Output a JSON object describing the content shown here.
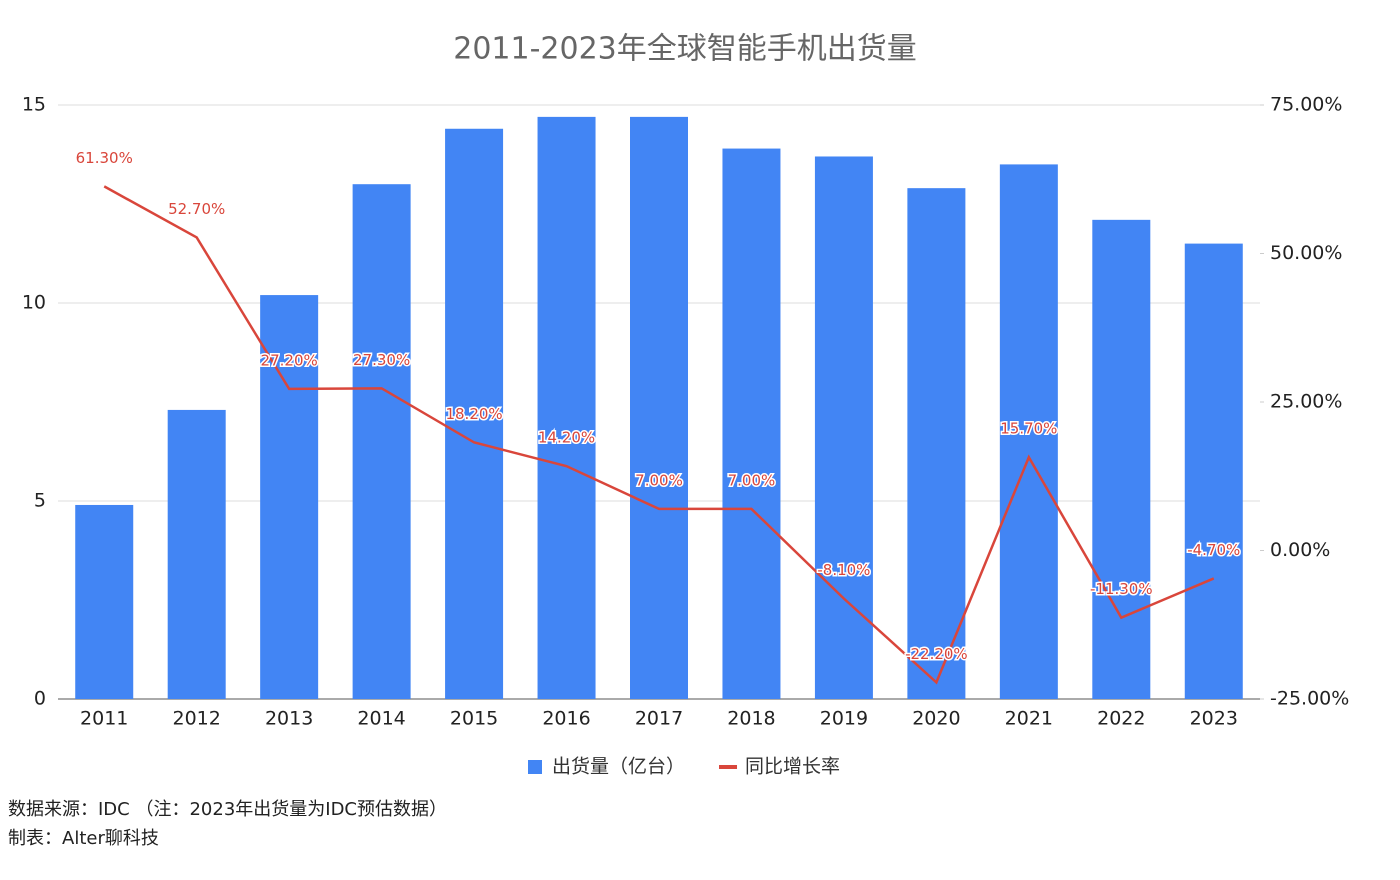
{
  "chart_data": {
    "type": "bar-line",
    "title": "2011-2023年全球智能手机出货量",
    "categories": [
      "2011",
      "2012",
      "2013",
      "2014",
      "2015",
      "2016",
      "2017",
      "2018",
      "2019",
      "2020",
      "2021",
      "2022",
      "2023"
    ],
    "series": [
      {
        "name": "出货量（亿台）",
        "type": "bar",
        "color": "#4285f4",
        "values": [
          4.9,
          7.3,
          10.2,
          13.0,
          14.4,
          14.7,
          14.7,
          13.9,
          13.7,
          12.9,
          13.5,
          12.1,
          11.5
        ]
      },
      {
        "name": "同比增长率",
        "type": "line",
        "axis": "y2",
        "color": "#d9463b",
        "values": [
          61.3,
          52.7,
          27.2,
          27.3,
          18.2,
          14.2,
          7.0,
          7.0,
          -8.1,
          -22.2,
          15.7,
          -11.3,
          -4.7
        ],
        "value_labels": [
          "61.30%",
          "52.70%",
          "27.20%",
          "27.30%",
          "18.20%",
          "14.20%",
          "7.00%",
          "7.00%",
          "-8.10%",
          "-22.20%",
          "15.70%",
          "-11.30%",
          "-4.70%"
        ]
      }
    ],
    "ylim": [
      0,
      15
    ],
    "yticks": [
      0,
      5,
      10,
      15
    ],
    "y2lim": [
      -25,
      75
    ],
    "y2ticks": [
      {
        "value": -25,
        "label": "-25.00%"
      },
      {
        "value": 0,
        "label": "0.00%"
      },
      {
        "value": 25,
        "label": "25.00%"
      },
      {
        "value": 50,
        "label": "50.00%"
      },
      {
        "value": 75,
        "label": "75.00%"
      }
    ],
    "grid": true,
    "legend": "bottom",
    "source": "数据来源：IDC （注：2023年出货量为IDC预估数据）",
    "credit": "制表：Alter聊科技"
  }
}
